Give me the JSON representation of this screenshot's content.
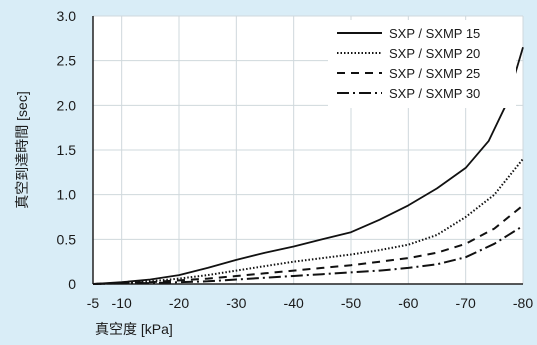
{
  "chart_data": {
    "type": "line",
    "title": "",
    "xlabel": "真空度 [kPa]",
    "ylabel": "真空到達時間 [sec]",
    "x_ticks": [
      -5,
      -10,
      -20,
      -30,
      -40,
      -50,
      -60,
      -70,
      -80
    ],
    "y_ticks": [
      "0",
      "0.5",
      "1.0",
      "1.5",
      "2.0",
      "2.5",
      "3.0"
    ],
    "y_tick_values": [
      0,
      0.5,
      1.0,
      1.5,
      2.0,
      2.5,
      3.0
    ],
    "ylim": [
      0,
      3.0
    ],
    "xlim": [
      -5,
      -80
    ],
    "grid": true,
    "legend_position": "top-right",
    "series": [
      {
        "name": "SXP / SXMP 15",
        "style": "solid",
        "x": [
          -5,
          -10,
          -15,
          -20,
          -25,
          -30,
          -35,
          -40,
          -45,
          -50,
          -55,
          -60,
          -65,
          -70,
          -74,
          -77,
          -80
        ],
        "y": [
          0,
          0.02,
          0.05,
          0.1,
          0.18,
          0.27,
          0.35,
          0.42,
          0.5,
          0.58,
          0.72,
          0.88,
          1.07,
          1.3,
          1.6,
          2.0,
          2.65
        ]
      },
      {
        "name": "SXP / SXMP 20",
        "style": "dotted",
        "x": [
          -5,
          -10,
          -15,
          -20,
          -25,
          -30,
          -35,
          -40,
          -45,
          -50,
          -55,
          -60,
          -65,
          -70,
          -75,
          -80
        ],
        "y": [
          0,
          0.01,
          0.03,
          0.06,
          0.1,
          0.15,
          0.2,
          0.25,
          0.29,
          0.33,
          0.38,
          0.44,
          0.55,
          0.75,
          1.0,
          1.4
        ]
      },
      {
        "name": "SXP / SXMP 25",
        "style": "dashed",
        "x": [
          -5,
          -10,
          -15,
          -20,
          -25,
          -30,
          -35,
          -40,
          -45,
          -50,
          -55,
          -60,
          -65,
          -70,
          -75,
          -80
        ],
        "y": [
          0,
          0.01,
          0.02,
          0.04,
          0.06,
          0.09,
          0.12,
          0.15,
          0.18,
          0.21,
          0.25,
          0.29,
          0.35,
          0.45,
          0.62,
          0.88
        ]
      },
      {
        "name": "SXP / SXMP 30",
        "style": "dashdot",
        "x": [
          -5,
          -10,
          -15,
          -20,
          -25,
          -30,
          -35,
          -40,
          -45,
          -50,
          -55,
          -60,
          -65,
          -70,
          -75,
          -80
        ],
        "y": [
          0,
          0.01,
          0.01,
          0.02,
          0.03,
          0.05,
          0.07,
          0.09,
          0.11,
          0.13,
          0.15,
          0.18,
          0.22,
          0.3,
          0.45,
          0.65
        ]
      }
    ],
    "colors": {
      "line": "#111111",
      "grid": "#ffffff",
      "plot_bg": "#ffffff",
      "page_bg": "#d9edf7"
    }
  }
}
